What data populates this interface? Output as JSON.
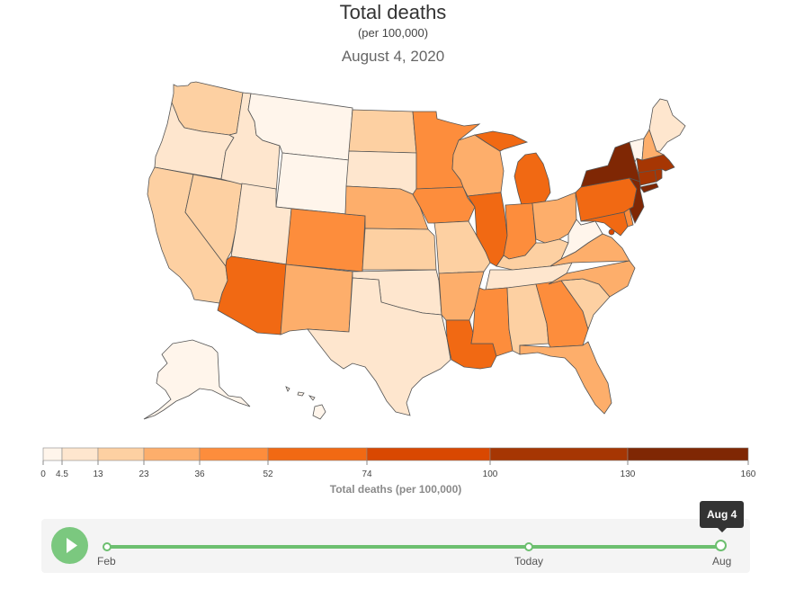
{
  "header": {
    "title": "Total deaths",
    "subtitle": "(per 100,000)",
    "date": "August 4, 2020"
  },
  "legend": {
    "title": "Total deaths (per 100,000)",
    "ticks": [
      "0",
      "4.5",
      "13",
      "23",
      "36",
      "52",
      "74",
      "100",
      "130",
      "160"
    ],
    "breaks": [
      0,
      4.5,
      13,
      23,
      36,
      52,
      74,
      100,
      130,
      160
    ],
    "colors": [
      "#fff5eb",
      "#fee6ce",
      "#fdd0a2",
      "#fdae6b",
      "#fd8d3c",
      "#f16913",
      "#d94801",
      "#a63603",
      "#7f2704"
    ]
  },
  "timeline": {
    "play_icon": "play-icon",
    "start_label": "Feb",
    "middle_label": "Today",
    "end_label": "Aug",
    "tooltip": "Aug 4"
  },
  "state_colors": {
    "WA": "#fdd0a2",
    "OR": "#fee6ce",
    "CA": "#fdd0a2",
    "NV": "#fdd0a2",
    "ID": "#fee6ce",
    "MT": "#fff5eb",
    "WY": "#fff5eb",
    "UT": "#fee6ce",
    "AZ": "#f16913",
    "CO": "#fd8d3c",
    "NM": "#fdae6b",
    "ND": "#fdd0a2",
    "SD": "#fee6ce",
    "NE": "#fdae6b",
    "KS": "#fdd0a2",
    "OK": "#fee6ce",
    "TX": "#fee6ce",
    "MN": "#fd8d3c",
    "IA": "#fd8d3c",
    "MO": "#fdd0a2",
    "AR": "#fdae6b",
    "LA": "#f16913",
    "WI": "#fdae6b",
    "IL": "#f16913",
    "MI": "#f16913",
    "IN": "#fd8d3c",
    "OH": "#fdae6b",
    "KY": "#fdd0a2",
    "TN": "#fee6ce",
    "MS": "#fd8d3c",
    "AL": "#fdd0a2",
    "GA": "#fd8d3c",
    "FL": "#fdae6b",
    "SC": "#fdd0a2",
    "NC": "#fdae6b",
    "VA": "#fdae6b",
    "WV": "#fff5eb",
    "PA": "#f16913",
    "NY": "#7f2704",
    "VT": "#fff5eb",
    "NH": "#fdae6b",
    "ME": "#fee6ce",
    "MA": "#a63603",
    "RI": "#a63603",
    "CT": "#a63603",
    "NJ": "#7f2704",
    "DE": "#fd8d3c",
    "MD": "#f16913",
    "DC": "#d94801",
    "AK": "#fff5eb",
    "HI": "#fff5eb"
  }
}
